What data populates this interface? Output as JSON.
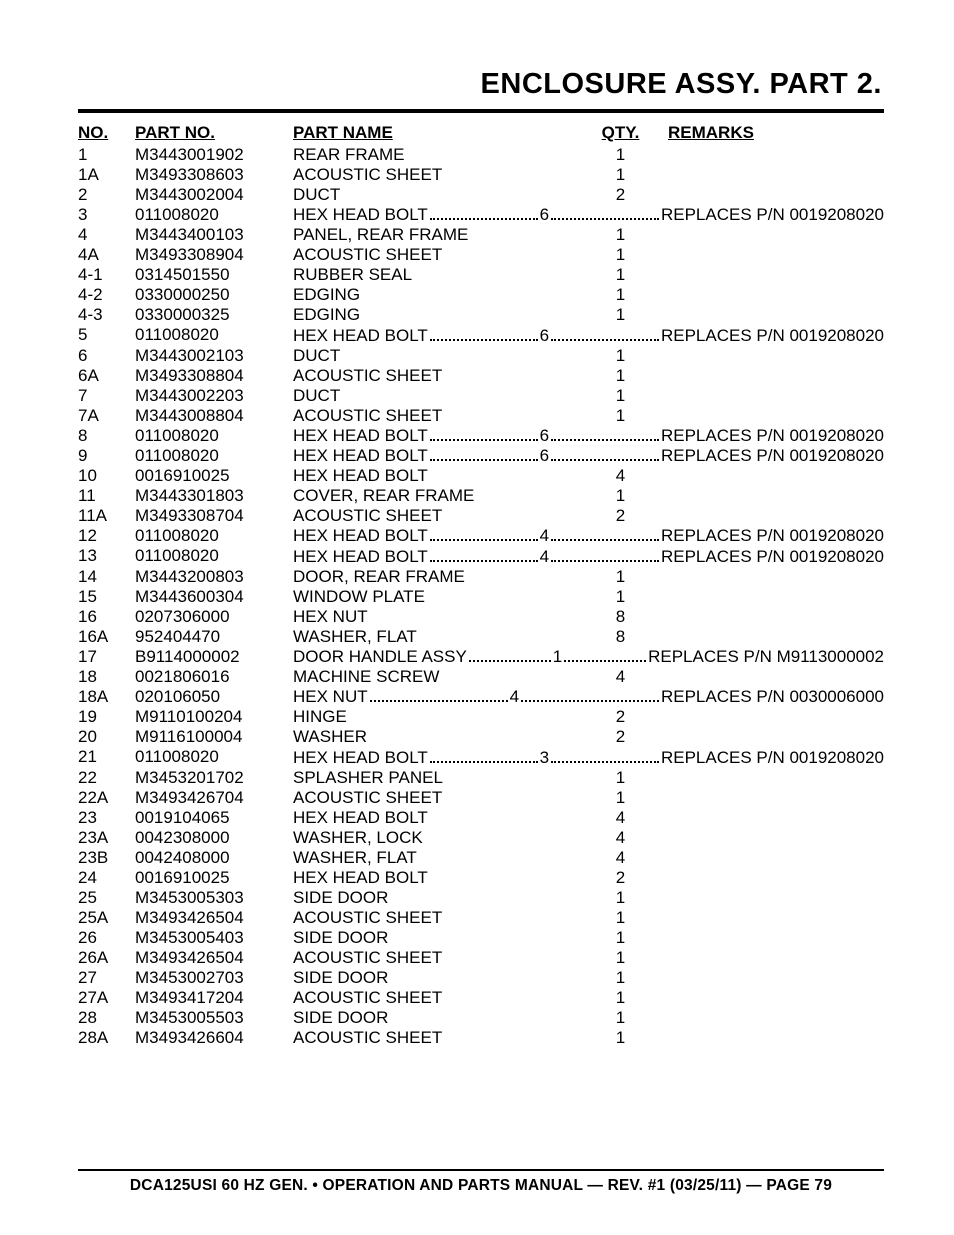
{
  "title": "ENCLOSURE ASSY. PART 2.",
  "footer": "DCA125USI 60 HZ GEN. • OPERATION AND PARTS MANUAL — REV. #1 (03/25/11) — PAGE 79",
  "headers": {
    "no": "NO.",
    "partno": "PART NO.",
    "name": "PART NAME",
    "qty": "QTY.",
    "remarks": "REMARKS"
  },
  "colors": {
    "text": "#000000",
    "background": "#ffffff",
    "rule": "#000000"
  },
  "typography": {
    "body_font": "Arial, Helvetica, sans-serif",
    "title_size_pt": 22,
    "header_size_pt": 13,
    "cell_size_pt": 13,
    "footer_size_pt": 12
  },
  "rows": [
    {
      "no": "1",
      "partno": "M3443001902",
      "name": "REAR FRAME",
      "qty": "1",
      "remarks": "",
      "leader": false
    },
    {
      "no": "1A",
      "partno": "M3493308603",
      "name": "ACOUSTIC SHEET",
      "qty": "1",
      "remarks": "",
      "leader": false
    },
    {
      "no": "2",
      "partno": "M3443002004",
      "name": "DUCT",
      "qty": "2",
      "remarks": "",
      "leader": false
    },
    {
      "no": "3",
      "partno": "011008020",
      "name": "HEX HEAD BOLT",
      "qty": "6",
      "remarks": "REPLACES P/N 0019208020",
      "leader": true
    },
    {
      "no": "4",
      "partno": "M3443400103",
      "name": "PANEL, REAR FRAME",
      "qty": "1",
      "remarks": "",
      "leader": false
    },
    {
      "no": "4A",
      "partno": "M3493308904",
      "name": "ACOUSTIC SHEET",
      "qty": "1",
      "remarks": "",
      "leader": false
    },
    {
      "no": "4-1",
      "partno": "0314501550",
      "name": "RUBBER SEAL",
      "qty": "1",
      "remarks": "",
      "leader": false
    },
    {
      "no": "4-2",
      "partno": "0330000250",
      "name": "EDGING",
      "qty": "1",
      "remarks": "",
      "leader": false
    },
    {
      "no": "4-3",
      "partno": "0330000325",
      "name": "EDGING",
      "qty": "1",
      "remarks": "",
      "leader": false
    },
    {
      "no": "5",
      "partno": "011008020",
      "name": "HEX HEAD BOLT",
      "qty": "6",
      "remarks": "REPLACES P/N 0019208020",
      "leader": true
    },
    {
      "no": "6",
      "partno": "M3443002103",
      "name": "DUCT",
      "qty": "1",
      "remarks": "",
      "leader": false
    },
    {
      "no": "6A",
      "partno": "M3493308804",
      "name": "ACOUSTIC SHEET",
      "qty": "1",
      "remarks": "",
      "leader": false
    },
    {
      "no": "7",
      "partno": "M3443002203",
      "name": "DUCT",
      "qty": "1",
      "remarks": "",
      "leader": false
    },
    {
      "no": "7A",
      "partno": "M3443008804",
      "name": "ACOUSTIC SHEET",
      "qty": "1",
      "remarks": "",
      "leader": false
    },
    {
      "no": "8",
      "partno": "011008020",
      "name": "HEX HEAD BOLT",
      "qty": "6",
      "remarks": "REPLACES P/N 0019208020",
      "leader": true
    },
    {
      "no": "9",
      "partno": "011008020",
      "name": "HEX HEAD BOLT",
      "qty": "6",
      "remarks": "REPLACES P/N 0019208020",
      "leader": true
    },
    {
      "no": "10",
      "partno": "0016910025",
      "name": "HEX HEAD BOLT",
      "qty": "4",
      "remarks": "",
      "leader": false
    },
    {
      "no": "11",
      "partno": "M3443301803",
      "name": "COVER, REAR FRAME",
      "qty": "1",
      "remarks": "",
      "leader": false
    },
    {
      "no": "11A",
      "partno": "M3493308704",
      "name": "ACOUSTIC SHEET",
      "qty": "2",
      "remarks": "",
      "leader": false
    },
    {
      "no": "12",
      "partno": "011008020",
      "name": "HEX HEAD BOLT",
      "qty": "4",
      "remarks": "REPLACES P/N 0019208020",
      "leader": true
    },
    {
      "no": "13",
      "partno": "011008020",
      "name": "HEX HEAD BOLT",
      "qty": "4",
      "remarks": "REPLACES P/N 0019208020",
      "leader": true
    },
    {
      "no": "14",
      "partno": "M3443200803",
      "name": "DOOR, REAR FRAME",
      "qty": "1",
      "remarks": "",
      "leader": false
    },
    {
      "no": "15",
      "partno": "M3443600304",
      "name": "WINDOW PLATE",
      "qty": "1",
      "remarks": "",
      "leader": false
    },
    {
      "no": "16",
      "partno": "0207306000",
      "name": "HEX NUT",
      "qty": "8",
      "remarks": "",
      "leader": false
    },
    {
      "no": "16A",
      "partno": "952404470",
      "name": "WASHER, FLAT",
      "qty": "8",
      "remarks": "",
      "leader": false
    },
    {
      "no": "17",
      "partno": "B9114000002",
      "name": "DOOR HANDLE ASSY",
      "qty": "1",
      "remarks": "REPLACES P/N M9113000002",
      "leader": true
    },
    {
      "no": "18",
      "partno": "0021806016",
      "name": "MACHINE SCREW",
      "qty": "4",
      "remarks": "",
      "leader": false
    },
    {
      "no": "18A",
      "partno": "020106050",
      "name": "HEX NUT",
      "qty": "4",
      "remarks": "REPLACES P/N 0030006000",
      "leader": true
    },
    {
      "no": "19",
      "partno": "M9110100204",
      "name": "HINGE",
      "qty": "2",
      "remarks": "",
      "leader": false
    },
    {
      "no": "20",
      "partno": "M9116100004",
      "name": "WASHER",
      "qty": "2",
      "remarks": "",
      "leader": false
    },
    {
      "no": "21",
      "partno": "011008020",
      "name": "HEX HEAD BOLT",
      "qty": "3",
      "remarks": "REPLACES P/N 0019208020",
      "leader": true
    },
    {
      "no": "22",
      "partno": "M3453201702",
      "name": "SPLASHER PANEL",
      "qty": "1",
      "remarks": "",
      "leader": false
    },
    {
      "no": "22A",
      "partno": "M3493426704",
      "name": "ACOUSTIC SHEET",
      "qty": "1",
      "remarks": "",
      "leader": false
    },
    {
      "no": "23",
      "partno": "0019104065",
      "name": "HEX HEAD BOLT",
      "qty": "4",
      "remarks": "",
      "leader": false
    },
    {
      "no": "23A",
      "partno": "0042308000",
      "name": "WASHER, LOCK",
      "qty": "4",
      "remarks": "",
      "leader": false
    },
    {
      "no": "23B",
      "partno": "0042408000",
      "name": "WASHER, FLAT",
      "qty": "4",
      "remarks": "",
      "leader": false
    },
    {
      "no": "24",
      "partno": "0016910025",
      "name": "HEX HEAD BOLT",
      "qty": "2",
      "remarks": "",
      "leader": false
    },
    {
      "no": "25",
      "partno": "M3453005303",
      "name": "SIDE DOOR",
      "qty": "1",
      "remarks": "",
      "leader": false
    },
    {
      "no": "25A",
      "partno": "M3493426504",
      "name": "ACOUSTIC SHEET",
      "qty": "1",
      "remarks": "",
      "leader": false
    },
    {
      "no": "26",
      "partno": "M3453005403",
      "name": "SIDE DOOR",
      "qty": "1",
      "remarks": "",
      "leader": false
    },
    {
      "no": "26A",
      "partno": "M3493426504",
      "name": "ACOUSTIC SHEET",
      "qty": "1",
      "remarks": "",
      "leader": false
    },
    {
      "no": "27",
      "partno": "M3453002703",
      "name": "SIDE DOOR",
      "qty": "1",
      "remarks": "",
      "leader": false
    },
    {
      "no": "27A",
      "partno": "M3493417204",
      "name": "ACOUSTIC SHEET",
      "qty": "1",
      "remarks": "",
      "leader": false
    },
    {
      "no": "28",
      "partno": "M3453005503",
      "name": "SIDE DOOR",
      "qty": "1",
      "remarks": "",
      "leader": false
    },
    {
      "no": "28A",
      "partno": "M3493426604",
      "name": "ACOUSTIC SHEET",
      "qty": "1",
      "remarks": "",
      "leader": false
    }
  ]
}
